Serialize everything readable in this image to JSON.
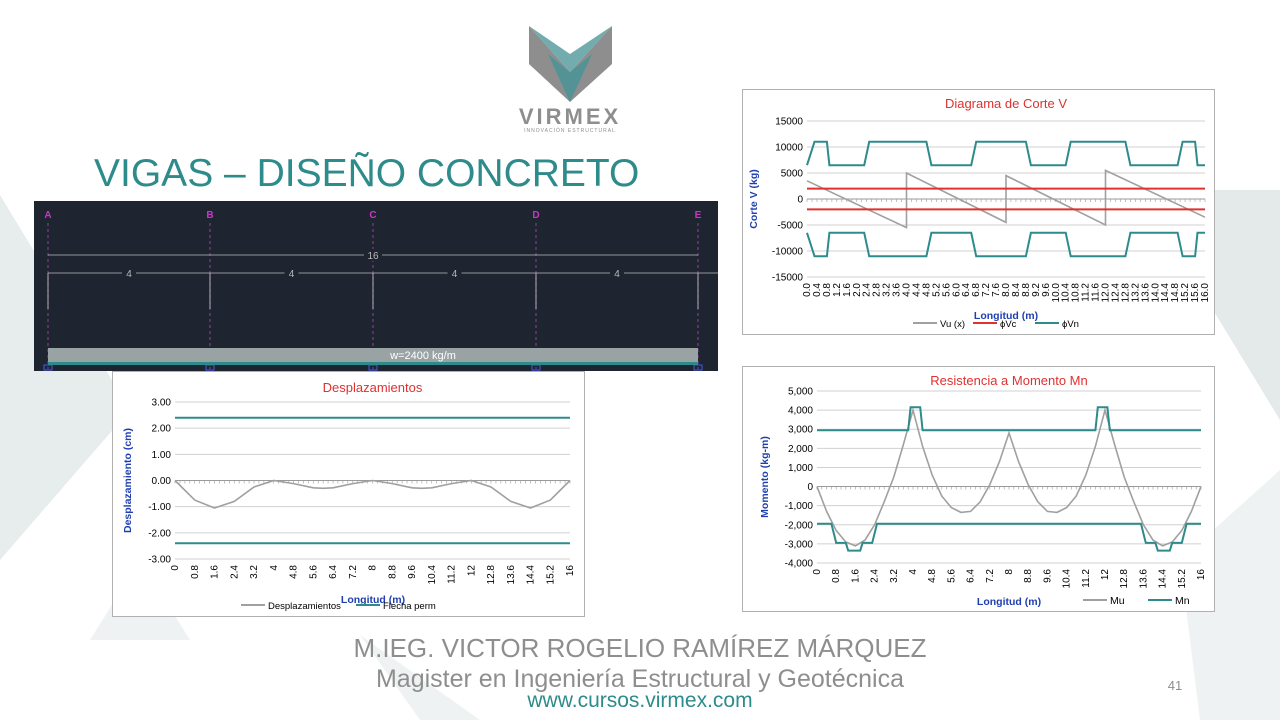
{
  "logo": {
    "name": "VIRMEX",
    "tagline": "INNOVACIÓN ESTRUCTURAL"
  },
  "slide": {
    "title": "VIGAS – DISEÑO CONCRETO",
    "author": "M.IEG. VICTOR ROGELIO RAMÍREZ MÁRQUEZ",
    "subtitle": "Magister en Ingeniería Estructural y Geotécnica",
    "website": "www.cursos.virmex.com",
    "page_number": "41"
  },
  "colors": {
    "teal": "#2e8b8b",
    "red": "#e03030",
    "gray_curve": "#a0a0a0",
    "title_red": "#e03030",
    "axis_blue": "#1f3fb0",
    "beam_bg": "#1f2530",
    "gridline_magenta": "#cc33cc"
  },
  "beam_model": {
    "supports": [
      "A",
      "B",
      "C",
      "D",
      "E"
    ],
    "total_span": "16",
    "spans": [
      "4",
      "4",
      "4",
      "4"
    ],
    "load_label": "w=2400 kg/m"
  },
  "chart_data": [
    {
      "id": "shear",
      "type": "line",
      "title": "Diagrama de Corte V",
      "xlabel": "Longitud (m)",
      "ylabel": "Corte V (kg)",
      "xlim": [
        0,
        16
      ],
      "ylim": [
        -15000,
        15000
      ],
      "xticks": [
        "0.0",
        "0.4",
        "0.8",
        "1.2",
        "1.6",
        "2.0",
        "2.4",
        "2.8",
        "3.2",
        "3.6",
        "4.0",
        "4.4",
        "4.8",
        "5.2",
        "5.6",
        "6.0",
        "6.4",
        "6.8",
        "7.2",
        "7.6",
        "8.0",
        "8.4",
        "8.8",
        "9.2",
        "9.6",
        "10.0",
        "10.4",
        "10.8",
        "11.2",
        "11.6",
        "12.0",
        "12.4",
        "12.8",
        "13.2",
        "13.6",
        "14.0",
        "14.4",
        "14.8",
        "15.2",
        "15.6",
        "16.0"
      ],
      "yticks": [
        "15000",
        "10000",
        "5000",
        "0",
        "-5000",
        "-10000",
        "-15000"
      ],
      "legend": [
        "Vu (x)",
        "ϕVc",
        "ϕVn"
      ],
      "legend_position": "bottom",
      "series": [
        {
          "name": "Vu (x)",
          "color": "#a0a0a0",
          "x": [
            0,
            4,
            4,
            8,
            8,
            12,
            12,
            16
          ],
          "y": [
            3500,
            -5500,
            5000,
            -4500,
            4500,
            -5000,
            5500,
            -3500
          ]
        },
        {
          "name": "ϕVc",
          "color": "#e03030",
          "x": [
            0,
            16,
            null,
            0,
            16
          ],
          "y": [
            2000,
            2000,
            null,
            -2000,
            -2000
          ]
        },
        {
          "name": "ϕVn",
          "color": "#2e8b8b",
          "x": [
            0,
            0.3,
            0.4,
            0.8,
            0.9,
            2.3,
            2.5,
            4.8,
            5.0,
            6.6,
            6.8,
            8.8,
            9.0,
            10.4,
            10.6,
            12.8,
            13.0,
            14.9,
            15.1,
            15.6,
            15.7,
            16,
            null,
            0,
            0.3,
            0.4,
            0.8,
            0.9,
            2.3,
            2.5,
            4.8,
            5.0,
            6.6,
            6.8,
            8.8,
            9.0,
            10.4,
            10.6,
            12.8,
            13.0,
            14.9,
            15.1,
            15.6,
            15.7,
            16
          ],
          "y": [
            6500,
            11000,
            11000,
            11000,
            6500,
            6500,
            11000,
            11000,
            6500,
            6500,
            11000,
            11000,
            6500,
            6500,
            11000,
            11000,
            6500,
            6500,
            11000,
            11000,
            6500,
            6500,
            null,
            -6500,
            -11000,
            -11000,
            -11000,
            -6500,
            -6500,
            -11000,
            -11000,
            -6500,
            -6500,
            -11000,
            -11000,
            -6500,
            -6500,
            -11000,
            -11000,
            -6500,
            -6500,
            -11000,
            -11000,
            -6500,
            -6500
          ]
        }
      ]
    },
    {
      "id": "displacement",
      "type": "line",
      "title": "Desplazamientos",
      "xlabel": "Longitud (m)",
      "ylabel": "Desplazamiento (cm)",
      "xlim": [
        0,
        16
      ],
      "ylim": [
        -3.0,
        3.0
      ],
      "xticks": [
        "0",
        "0.8",
        "1.6",
        "2.4",
        "3.2",
        "4",
        "4.8",
        "5.6",
        "6.4",
        "7.2",
        "8",
        "8.8",
        "9.6",
        "10.4",
        "11.2",
        "12",
        "12.8",
        "13.6",
        "14.4",
        "15.2",
        "16"
      ],
      "yticks": [
        "3.00",
        "2.00",
        "1.00",
        "0.00",
        "-1.00",
        "-2.00",
        "-3.00"
      ],
      "legend": [
        "Desplazamientos",
        "Flecha perm"
      ],
      "legend_position": "bottom",
      "series": [
        {
          "name": "Desplazamientos",
          "color": "#a0a0a0",
          "x": [
            0,
            0.8,
            1.6,
            2.4,
            3.2,
            4,
            4.8,
            5.6,
            6,
            6.4,
            7.2,
            8,
            8.8,
            9.6,
            10,
            10.4,
            11.2,
            12,
            12.8,
            13.6,
            14.4,
            15.2,
            16
          ],
          "y": [
            0,
            -0.75,
            -1.05,
            -0.8,
            -0.25,
            0,
            -0.12,
            -0.28,
            -0.3,
            -0.28,
            -0.12,
            0,
            -0.12,
            -0.28,
            -0.3,
            -0.28,
            -0.12,
            0,
            -0.25,
            -0.8,
            -1.05,
            -0.75,
            0
          ]
        },
        {
          "name": "Flecha perm",
          "color": "#2e8b8b",
          "x": [
            0,
            16,
            null,
            0,
            16
          ],
          "y": [
            2.4,
            2.4,
            null,
            -2.4,
            -2.4
          ]
        }
      ]
    },
    {
      "id": "moment",
      "type": "line",
      "title": "Resistencia a Momento Mn",
      "xlabel": "Longitud (m)",
      "ylabel": "Momento (kg-m)",
      "xlim": [
        0,
        16
      ],
      "ylim": [
        -4000,
        5000
      ],
      "xticks": [
        "0",
        "0.8",
        "1.6",
        "2.4",
        "3.2",
        "4",
        "4.8",
        "5.6",
        "6.4",
        "7.2",
        "8",
        "8.8",
        "9.6",
        "10.4",
        "11.2",
        "12",
        "12.8",
        "13.6",
        "14.4",
        "15.2",
        "16"
      ],
      "yticks": [
        "5,000",
        "4,000",
        "3,000",
        "2,000",
        "1,000",
        "0",
        "-1,000",
        "-2,000",
        "-3,000",
        "-4,000"
      ],
      "legend": [
        "Mu",
        "Mn"
      ],
      "legend_position": "bottom",
      "series": [
        {
          "name": "Mu",
          "color": "#a0a0a0",
          "x": [
            0,
            0.4,
            0.8,
            1.2,
            1.6,
            2.0,
            2.4,
            2.8,
            3.2,
            3.6,
            4.0,
            4.4,
            4.8,
            5.2,
            5.6,
            6.0,
            6.4,
            6.8,
            7.2,
            7.6,
            8.0,
            8.4,
            8.8,
            9.2,
            9.6,
            10.0,
            10.4,
            10.8,
            11.2,
            11.6,
            12.0,
            12.4,
            12.8,
            13.2,
            13.6,
            14.0,
            14.4,
            14.8,
            15.2,
            15.6,
            16.0
          ],
          "y": [
            0,
            -1300,
            -2300,
            -2900,
            -3100,
            -2800,
            -2000,
            -800,
            500,
            2200,
            4000,
            2100,
            600,
            -500,
            -1100,
            -1350,
            -1300,
            -800,
            100,
            1300,
            2800,
            1300,
            100,
            -800,
            -1300,
            -1350,
            -1100,
            -500,
            600,
            2100,
            4000,
            2200,
            500,
            -800,
            -2000,
            -2800,
            -3100,
            -2900,
            -2300,
            -1300,
            0
          ]
        },
        {
          "name": "Mn",
          "color": "#2e8b8b",
          "x": [
            0,
            0.8,
            1.0,
            1.2,
            1.8,
            2.0,
            2.6,
            2.8,
            3.8,
            3.9,
            4.2,
            4.3,
            4.4,
            11.6,
            11.7,
            12.0,
            12.1,
            12.2,
            13.2,
            13.4,
            14.0,
            14.2,
            14.8,
            15.0,
            15.2,
            16,
            null,
            0,
            0.6,
            0.8,
            1.2,
            1.3,
            1.8,
            1.9,
            2.3,
            2.5,
            13.5,
            13.7,
            14.1,
            14.2,
            14.7,
            14.8,
            15.2,
            15.4,
            16
          ],
          "y": [
            2950,
            2950,
            2950,
            2950,
            2950,
            2950,
            2950,
            2950,
            2950,
            4150,
            4150,
            4150,
            2950,
            2950,
            4150,
            4150,
            4150,
            2950,
            2950,
            2950,
            2950,
            2950,
            2950,
            2950,
            2950,
            2950,
            null,
            -1950,
            -1950,
            -2950,
            -2950,
            -3350,
            -3350,
            -2950,
            -2950,
            -1950,
            -1950,
            -2950,
            -2950,
            -3350,
            -3350,
            -2950,
            -2950,
            -1950,
            -1950
          ]
        }
      ]
    }
  ]
}
